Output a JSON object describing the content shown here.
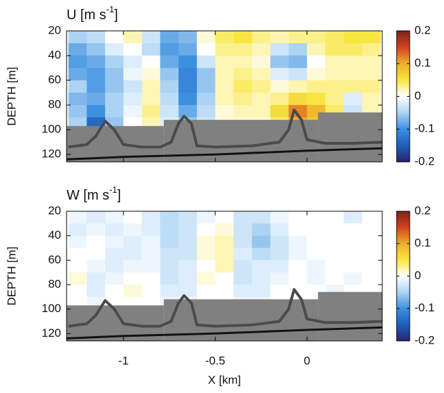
{
  "chart_data": [
    {
      "type": "heatmap",
      "title": [
        "U [m s",
        "-1",
        "]"
      ],
      "ylabel": "DEPTH [m]",
      "x": [
        -1.25,
        -1.15,
        -1.05,
        -0.95,
        -0.85,
        -0.75,
        -0.65,
        -0.55,
        -0.45,
        -0.35,
        -0.25,
        -0.15,
        -0.05,
        0.05,
        0.15,
        0.25,
        0.35
      ],
      "y": [
        25,
        35,
        45,
        55,
        65,
        75,
        85,
        95
      ],
      "values": [
        [
          -0.05,
          -0.04,
          0,
          0.02,
          -0.03,
          -0.08,
          -0.07,
          0.01,
          0.04,
          0.05,
          0.03,
          0.02,
          0.03,
          0.03,
          0.04,
          0.05,
          0.05
        ],
        [
          -0.08,
          -0.06,
          -0.02,
          0,
          -0.04,
          -0.09,
          -0.08,
          0,
          0.03,
          0.03,
          0.02,
          -0.03,
          -0.05,
          0.02,
          0.04,
          0.04,
          0.03
        ],
        [
          -0.09,
          -0.08,
          -0.05,
          -0.02,
          0,
          -0.08,
          -0.1,
          -0.03,
          0.02,
          0.02,
          0.01,
          -0.06,
          -0.07,
          0,
          0.02,
          0.02,
          0.02
        ],
        [
          -0.08,
          -0.09,
          -0.06,
          -0.01,
          0.01,
          -0.06,
          -0.11,
          -0.06,
          0.02,
          0.03,
          0.02,
          -0.02,
          -0.03,
          0.01,
          0.02,
          0.02,
          0.02
        ],
        [
          -0.05,
          -0.09,
          -0.06,
          -0.03,
          0.02,
          -0.05,
          -0.11,
          -0.06,
          0.02,
          0.04,
          0.03,
          0.01,
          0.02,
          0.03,
          0.03,
          0.03,
          0.03
        ],
        [
          -0.07,
          -0.08,
          -0.05,
          -0.02,
          0.02,
          -0.04,
          -0.1,
          -0.05,
          0.02,
          0.03,
          0.02,
          0.03,
          0.06,
          0.05,
          0.03,
          -0.02,
          0.02
        ],
        [
          -0.06,
          -0.1,
          -0.05,
          -0.01,
          0.03,
          -0.03,
          -0.08,
          -0.04,
          0.01,
          0.02,
          0.02,
          0.06,
          0.12,
          0.09,
          0.04,
          -0.03,
          0.02
        ],
        [
          -0.05,
          -0.14,
          -0.06,
          0,
          0.02,
          -0.02,
          -0.06,
          -0.03,
          0.01,
          0.01,
          0.01,
          0.04,
          0.1,
          0.08,
          0.03,
          0.01,
          0.01
        ]
      ],
      "xlim": [
        -1.31,
        0.41
      ],
      "ylim": [
        20,
        126
      ],
      "y_reversed": true,
      "xticks": [
        -1,
        -0.5,
        0
      ],
      "yticks": [
        20,
        40,
        60,
        80,
        100,
        120
      ],
      "show_xtick_labels": false,
      "clim": [
        -0.2,
        0.2
      ],
      "cticks": [
        0.2,
        0.1,
        0,
        -0.1,
        -0.2
      ],
      "colormap": [
        "#27246f",
        "#1f5fb8",
        "#3d90e0",
        "#acd3f4",
        "#ffffff",
        "#f8e640",
        "#efae2c",
        "#d04420",
        "#7a2418"
      ],
      "mask_x": [
        -1.31,
        -0.78,
        0.06,
        0.41
      ],
      "mask_depth": [
        97,
        92,
        86
      ],
      "mask_color": "#808080",
      "ridge": {
        "x": [
          -1.3,
          -1.2,
          -1.15,
          -1.1,
          -1.05,
          -1.0,
          -0.9,
          -0.8,
          -0.74,
          -0.7,
          -0.67,
          -0.63,
          -0.6,
          -0.5,
          -0.3,
          -0.15,
          -0.1,
          -0.07,
          -0.03,
          0.0,
          0.1,
          0.25,
          0.41
        ],
        "depth": [
          114,
          112,
          105,
          93,
          100,
          112,
          114,
          114,
          110,
          95,
          89,
          95,
          113,
          114,
          113,
          110,
          100,
          84,
          92,
          108,
          111,
          111,
          110
        ],
        "color": "#4a4a4a"
      },
      "bottom": {
        "x": [
          -1.31,
          -1.0,
          -0.5,
          0.0,
          0.41
        ],
        "depth": [
          124,
          122,
          120,
          117,
          115
        ],
        "color": "#111111"
      }
    },
    {
      "type": "heatmap",
      "title": [
        "W [m s",
        "-1",
        "]"
      ],
      "ylabel": "DEPTH [m]",
      "xlabel": "X [km]",
      "x": [
        -1.25,
        -1.15,
        -1.05,
        -0.95,
        -0.85,
        -0.75,
        -0.65,
        -0.55,
        -0.45,
        -0.35,
        -0.25,
        -0.15,
        -0.05,
        0.05,
        0.15,
        0.25,
        0.35
      ],
      "y": [
        25,
        35,
        45,
        55,
        65,
        75,
        85,
        95
      ],
      "values": [
        [
          -0.01,
          -0.02,
          -0.01,
          0,
          -0.02,
          -0.04,
          -0.03,
          -0.01,
          0,
          -0.03,
          -0.03,
          -0.01,
          0,
          0,
          0,
          -0.02,
          0
        ],
        [
          -0.02,
          -0.01,
          -0.02,
          -0.01,
          -0.02,
          -0.04,
          -0.03,
          0,
          0.01,
          -0.03,
          -0.05,
          -0.02,
          0,
          0,
          0,
          0,
          0
        ],
        [
          -0.01,
          0,
          -0.01,
          -0.02,
          -0.01,
          -0.04,
          -0.03,
          0.01,
          0.02,
          -0.03,
          -0.06,
          -0.03,
          -0.01,
          0,
          0,
          0,
          0
        ],
        [
          0,
          0,
          -0.02,
          -0.02,
          -0.01,
          -0.03,
          -0.03,
          0.01,
          0.02,
          -0.02,
          -0.04,
          -0.03,
          -0.01,
          0,
          0,
          0,
          0
        ],
        [
          0,
          -0.01,
          -0.02,
          -0.01,
          -0.01,
          -0.03,
          -0.02,
          0,
          0.02,
          -0.03,
          -0.02,
          -0.02,
          0,
          -0.01,
          0,
          0,
          0
        ],
        [
          0.01,
          -0.02,
          -0.01,
          0,
          0,
          -0.03,
          -0.02,
          0.01,
          0,
          -0.03,
          -0.02,
          -0.01,
          0,
          -0.01,
          0,
          -0.01,
          0
        ],
        [
          0,
          -0.02,
          0,
          0.01,
          0,
          -0.02,
          -0.02,
          0,
          0,
          -0.02,
          -0.02,
          0,
          0,
          0,
          -0.01,
          0,
          0
        ],
        [
          0,
          -0.01,
          0,
          0,
          0,
          -0.01,
          -0.01,
          0,
          0,
          -0.01,
          -0.01,
          0,
          0,
          0,
          0,
          0,
          0
        ]
      ],
      "xlim": [
        -1.31,
        0.41
      ],
      "ylim": [
        20,
        126
      ],
      "y_reversed": true,
      "xticks": [
        -1,
        -0.5,
        0
      ],
      "yticks": [
        20,
        40,
        60,
        80,
        100,
        120
      ],
      "show_xtick_labels": true,
      "clim": [
        -0.2,
        0.2
      ],
      "cticks": [
        0.2,
        0.1,
        0,
        -0.1,
        -0.2
      ],
      "colormap": [
        "#27246f",
        "#1f5fb8",
        "#3d90e0",
        "#acd3f4",
        "#ffffff",
        "#f8e640",
        "#efae2c",
        "#d04420",
        "#7a2418"
      ],
      "mask_x": [
        -1.31,
        -0.78,
        0.06,
        0.41
      ],
      "mask_depth": [
        97,
        92,
        86
      ],
      "mask_color": "#808080",
      "ridge": {
        "x": [
          -1.3,
          -1.2,
          -1.15,
          -1.1,
          -1.05,
          -1.0,
          -0.9,
          -0.8,
          -0.74,
          -0.7,
          -0.67,
          -0.63,
          -0.6,
          -0.5,
          -0.3,
          -0.15,
          -0.1,
          -0.07,
          -0.03,
          0.0,
          0.1,
          0.25,
          0.41
        ],
        "depth": [
          114,
          112,
          105,
          93,
          100,
          112,
          114,
          114,
          110,
          95,
          89,
          95,
          113,
          114,
          113,
          110,
          100,
          84,
          92,
          108,
          111,
          111,
          110
        ],
        "color": "#4a4a4a"
      },
      "bottom": {
        "x": [
          -1.31,
          -1.0,
          -0.5,
          0.0,
          0.41
        ],
        "depth": [
          124,
          122,
          120,
          117,
          115
        ],
        "color": "#111111"
      }
    }
  ]
}
